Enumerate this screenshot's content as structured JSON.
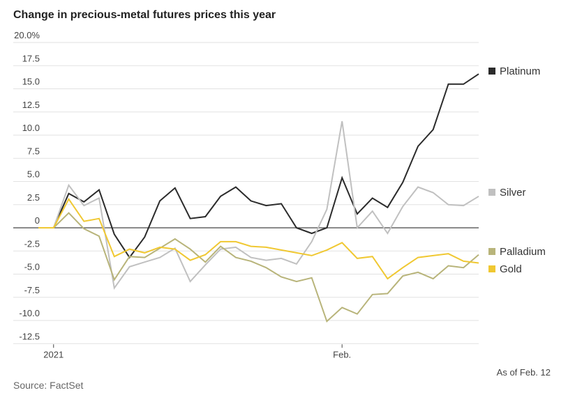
{
  "chart_data": {
    "type": "line",
    "title": "Change in precious-metal futures prices this year",
    "source": "Source: FactSet",
    "note": "As of Feb. 12",
    "ylim": [
      -12.5,
      20
    ],
    "yticks": [
      20,
      17.5,
      15,
      12.5,
      10,
      7.5,
      5,
      2.5,
      0,
      -2.5,
      -5,
      -7.5,
      -10,
      -12.5
    ],
    "ytick_labels": [
      "20.0%",
      "17.5",
      "15.0",
      "12.5",
      "10.0",
      "7.5",
      "5.0",
      "2.5",
      "0",
      "-2.5",
      "-5.0",
      "-7.5",
      "-10.0",
      "-12.5"
    ],
    "xtick_labels": [
      {
        "index": 1,
        "label": "2021"
      },
      {
        "index": 20,
        "label": "Feb."
      }
    ],
    "grid": true,
    "legend_placement": "right",
    "series": [
      {
        "name": "Platinum",
        "color": "#2b2b2b",
        "values": [
          0,
          0,
          3.7,
          2.8,
          4.1,
          -0.7,
          -3.2,
          -1.0,
          2.9,
          4.3,
          1.0,
          1.2,
          3.4,
          4.4,
          2.9,
          2.4,
          2.6,
          0,
          -0.6,
          0,
          5.4,
          1.5,
          3.2,
          2.2,
          4.9,
          8.8,
          10.6,
          15.5,
          15.5,
          16.6
        ]
      },
      {
        "name": "Silver",
        "color": "#c0c0c0",
        "values": [
          0,
          0,
          4.6,
          2.4,
          3.2,
          -6.5,
          -4.2,
          -3.7,
          -3.2,
          -2.2,
          -5.8,
          -4.0,
          -2.3,
          -2.1,
          -3.2,
          -3.5,
          -3.3,
          -3.9,
          -1.5,
          2.0,
          11.5,
          0,
          1.8,
          -0.6,
          2.3,
          4.4,
          3.8,
          2.5,
          2.4,
          3.4
        ]
      },
      {
        "name": "Palladium",
        "color": "#b8b47a",
        "values": [
          0,
          0,
          1.6,
          -0.1,
          -0.9,
          -5.6,
          -3.1,
          -3.2,
          -2.2,
          -1.2,
          -2.3,
          -3.7,
          -2.0,
          -3.2,
          -3.6,
          -4.3,
          -5.3,
          -5.8,
          -5.4,
          -10.1,
          -8.6,
          -9.3,
          -7.2,
          -7.1,
          -5.2,
          -4.8,
          -5.5,
          -4.1,
          -4.3,
          -2.9
        ]
      },
      {
        "name": "Gold",
        "color": "#f0c832",
        "values": [
          0,
          0,
          3.1,
          0.7,
          1.0,
          -3.1,
          -2.3,
          -2.7,
          -2.1,
          -2.3,
          -3.5,
          -2.9,
          -1.5,
          -1.5,
          -2.0,
          -2.1,
          -2.4,
          -2.7,
          -3.0,
          -2.4,
          -1.6,
          -3.3,
          -3.1,
          -5.5,
          -4.3,
          -3.2,
          -3.0,
          -2.8,
          -3.6,
          -3.8
        ]
      }
    ]
  }
}
